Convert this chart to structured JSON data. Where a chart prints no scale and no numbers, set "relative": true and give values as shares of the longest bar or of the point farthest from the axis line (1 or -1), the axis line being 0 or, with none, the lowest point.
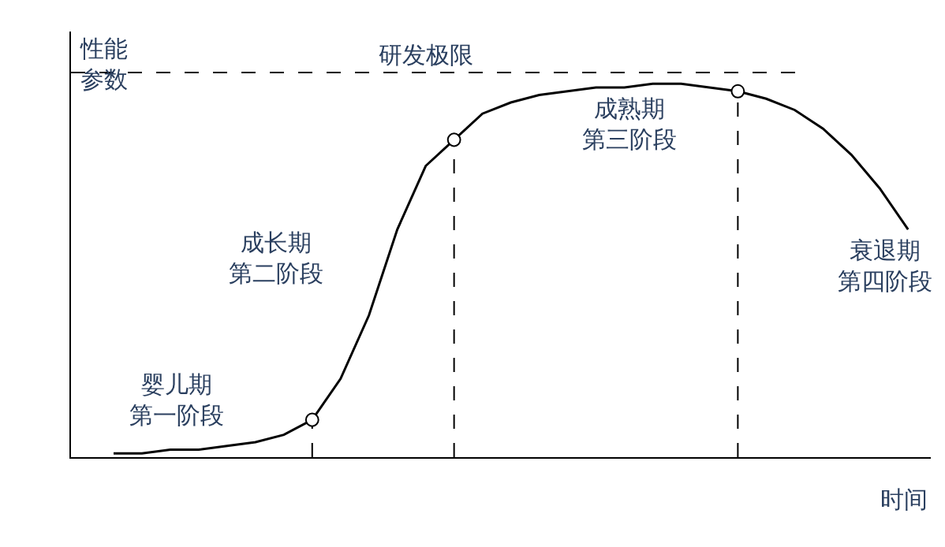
{
  "chart_data": {
    "type": "line",
    "relative": true,
    "xlabel": "时间",
    "ylabel": "性能参数",
    "categories": [
      null,
      null,
      null,
      null,
      null,
      null,
      null,
      null,
      null,
      null,
      null,
      null,
      null,
      null,
      null,
      null,
      null,
      null,
      null,
      null,
      null,
      null,
      null,
      null,
      null,
      null,
      null,
      null,
      null
    ],
    "series": [
      {
        "color": "#000000",
        "values": [
          0.01,
          0.01,
          0.02,
          0.02,
          0.03,
          0.04,
          0.06,
          0.1,
          0.21,
          0.38,
          0.61,
          0.78,
          0.85,
          0.92,
          0.95,
          0.97,
          0.98,
          0.99,
          0.99,
          1,
          1,
          0.99,
          0.98,
          0.96,
          0.93,
          0.88,
          0.81,
          0.72,
          0.61
        ]
      }
    ],
    "ref_lines": [
      {
        "axis": "y",
        "value": 1.03,
        "label": "研发极限",
        "line_style": "dashed"
      }
    ],
    "annotations": [
      "婴儿期第一阶段",
      "成长期第二阶段",
      "成熟期第三阶段",
      "衰退期第四阶段"
    ],
    "line_style": "solid"
  }
}
